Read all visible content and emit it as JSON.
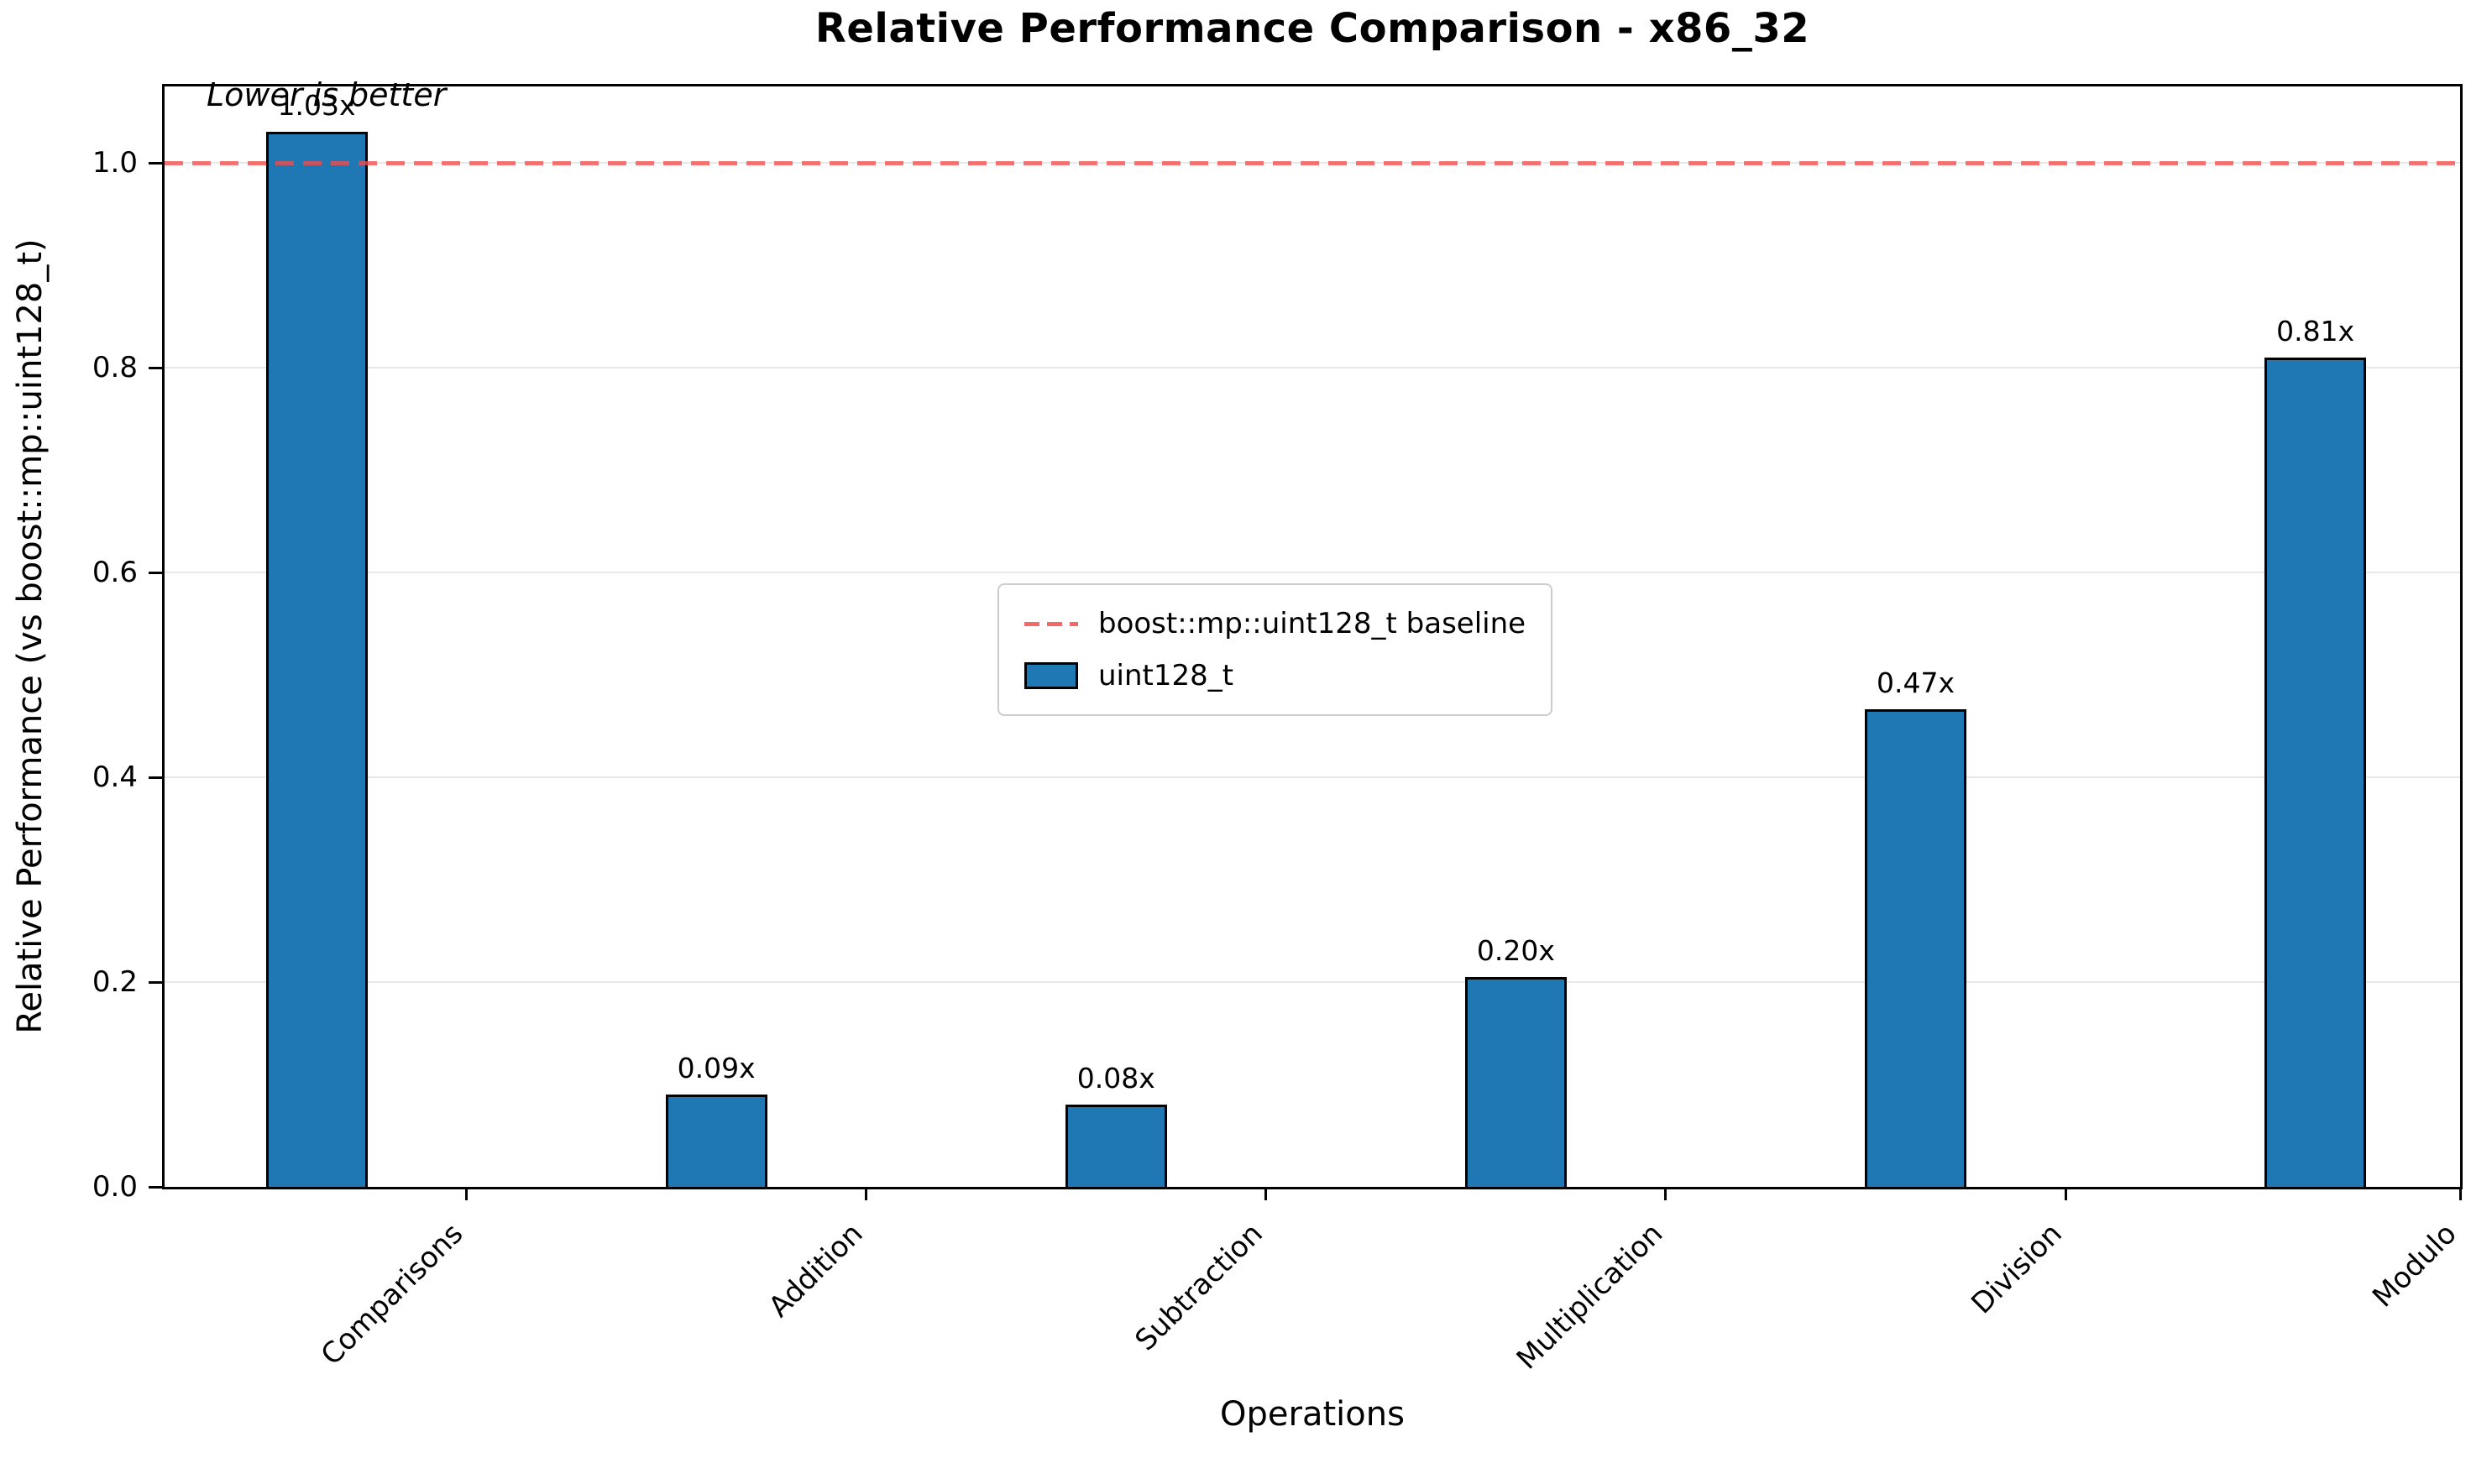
{
  "chart_data": {
    "type": "bar",
    "title": "Relative Performance Comparison - x86_32",
    "xlabel": "Operations",
    "ylabel": "Relative Performance (vs boost::mp::uint128_t)",
    "categories": [
      "Comparisons",
      "Addition",
      "Subtraction",
      "Multiplication",
      "Division",
      "Modulo"
    ],
    "values": [
      1.03,
      0.09,
      0.08,
      0.205,
      0.466,
      0.81
    ],
    "bar_labels": [
      "1.03x",
      "0.09x",
      "0.08x",
      "0.20x",
      "0.47x",
      "0.81x"
    ],
    "ytick_values": [
      0.0,
      0.2,
      0.4,
      0.6,
      0.8,
      1.0
    ],
    "ytick_labels": [
      "0.0",
      "0.2",
      "0.4",
      "0.6",
      "0.8",
      "1.0"
    ],
    "ylim": [
      0,
      1.08
    ],
    "baseline_value": 1.0,
    "grid": true,
    "annotation": "Lower is better",
    "legend": {
      "position": "center",
      "entries": [
        {
          "label": "boost::mp::uint128_t baseline",
          "type": "dashed-line",
          "color": "#f24d4d"
        },
        {
          "label": "uint128_t",
          "type": "bar-swatch",
          "color": "#1f77b4"
        }
      ]
    },
    "colors": {
      "bar_fill": "#1f77b4",
      "bar_edge": "#000000",
      "baseline": "#f24d4d",
      "grid": "#e8e8e8",
      "spine": "#000000"
    }
  }
}
